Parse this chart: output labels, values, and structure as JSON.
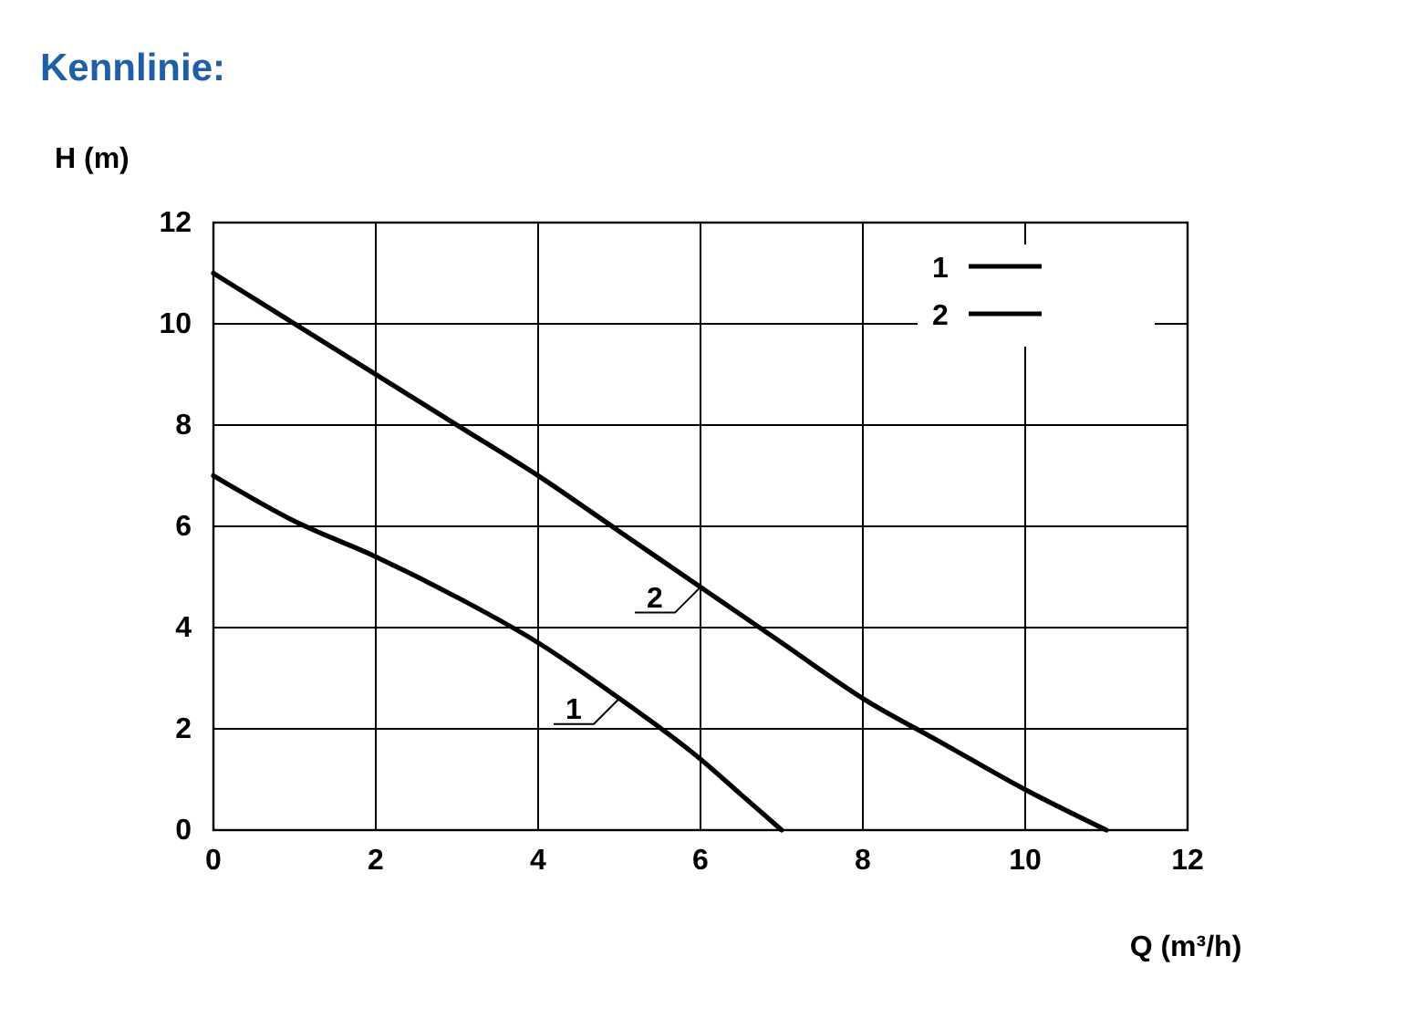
{
  "chart_data": {
    "type": "line",
    "title": "Kennlinie:",
    "xlabel": "Q (m³/h)",
    "ylabel": "H (m)",
    "xlim": [
      0,
      12
    ],
    "xticks": [
      0,
      2,
      4,
      6,
      8,
      10,
      12
    ],
    "ylim": [
      0,
      12
    ],
    "yticks": [
      0,
      2,
      4,
      6,
      8,
      10,
      12
    ],
    "grid": true,
    "legend": "top right",
    "series": [
      {
        "name": "1",
        "color": "#000000",
        "x": [
          0,
          1,
          2,
          3,
          4,
          5,
          6,
          6.5,
          7
        ],
        "values": [
          7,
          6.1,
          5.4,
          4.6,
          3.7,
          2.6,
          1.4,
          0.7,
          0
        ]
      },
      {
        "name": "2",
        "color": "#000000",
        "x": [
          0,
          1,
          2,
          3,
          4,
          5,
          6,
          7,
          8,
          9,
          10,
          11
        ],
        "values": [
          11,
          10,
          9,
          8,
          7,
          5.9,
          4.8,
          3.7,
          2.6,
          1.7,
          0.8,
          0
        ]
      }
    ]
  }
}
